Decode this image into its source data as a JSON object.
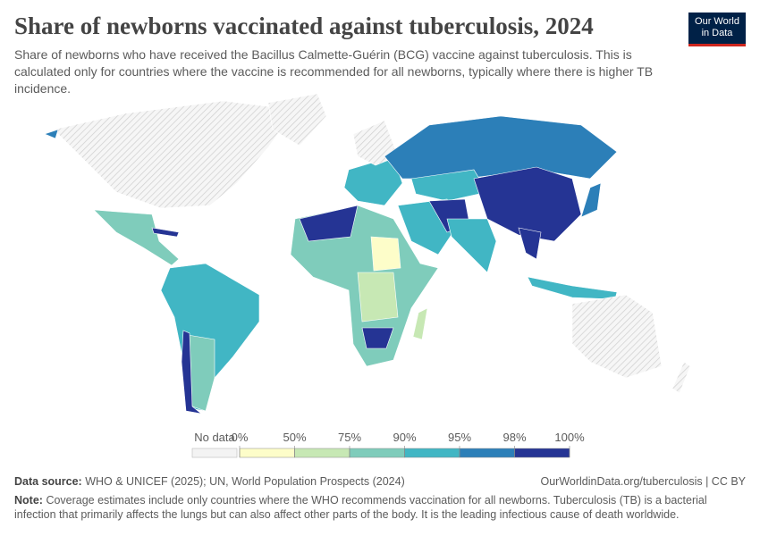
{
  "header": {
    "title": "Share of newborns vaccinated against tuberculosis, 2024",
    "subtitle": "Share of newborns who have received the Bacillus Calmette-Guérin (BCG) vaccine against tuberculosis. This is calculated only for countries where the vaccine is recommended for all newborns, typically where there is higher TB incidence.",
    "logo": [
      "Our World",
      "in Data"
    ]
  },
  "legend": {
    "no_data": "No data",
    "ticks": [
      "0%",
      "50%",
      "75%",
      "90%",
      "95%",
      "98%",
      "100%"
    ],
    "colors": [
      "#fdfdc9",
      "#c7e8b4",
      "#7fccbb",
      "#41b6c4",
      "#2c7fb8",
      "#253494"
    ]
  },
  "footer": {
    "source_label": "Data source:",
    "source": "WHO & UNICEF (2025); UN, World Population Prospects (2024)",
    "link": "OurWorldinData.org/tuberculosis | CC BY",
    "note_label": "Note:",
    "note": "Coverage estimates include only countries where the WHO recommends vaccination for all newborns. Tuberculosis (TB) is a bacterial infection that primarily affects the lungs but can also affect other parts of the body. It is the leading infectious cause of death worldwide."
  }
}
